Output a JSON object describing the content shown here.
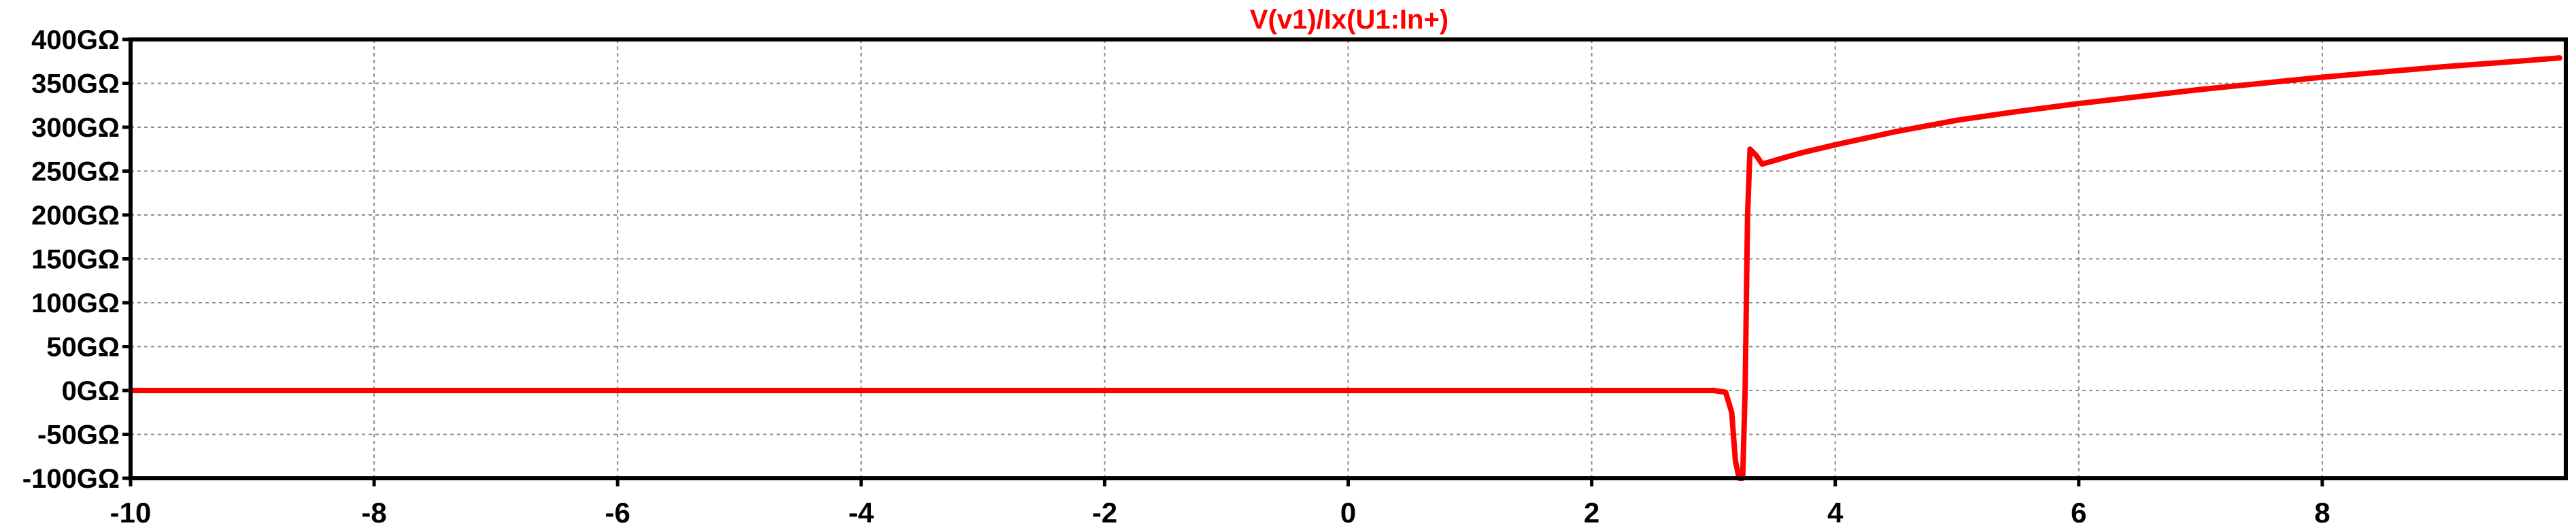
{
  "chart_data": {
    "type": "line",
    "title": "V(v1)/Ix(U1:In+)",
    "title_color": "#ff0000",
    "xlim": [
      -10,
      10
    ],
    "ylim": [
      -100,
      400
    ],
    "y_unit": "GΩ",
    "grid": true,
    "x_ticks": [
      -10,
      -8,
      -6,
      -4,
      -2,
      0,
      2,
      4,
      6,
      8
    ],
    "x_tick_labels": [
      "-10",
      "-8",
      "-6",
      "-4",
      "-2",
      "0",
      "2",
      "4",
      "6",
      "8"
    ],
    "y_ticks": [
      400,
      350,
      300,
      250,
      200,
      150,
      100,
      50,
      0,
      -50,
      -100
    ],
    "y_tick_labels": [
      "400GΩ",
      "350GΩ",
      "300GΩ",
      "250GΩ",
      "200GΩ",
      "150GΩ",
      "100GΩ",
      "50GΩ",
      "0GΩ",
      "-50GΩ",
      "-100GΩ"
    ],
    "series": [
      {
        "color": "#ff0000",
        "x": [
          -10,
          3.0,
          3.1,
          3.15,
          3.18,
          3.21,
          3.24,
          3.26,
          3.28,
          3.3,
          3.35,
          3.4,
          3.5,
          3.7,
          4.0,
          4.5,
          5.0,
          5.5,
          6.0,
          6.5,
          7.0,
          7.5,
          8.0,
          8.5,
          9.0,
          9.5,
          9.95
        ],
        "y": [
          0,
          0,
          -2,
          -25,
          -80,
          -100,
          -100,
          0,
          200,
          275,
          268,
          258,
          262,
          270,
          280,
          295,
          308,
          318,
          327,
          335,
          343,
          350,
          357,
          363,
          369,
          374,
          379
        ]
      }
    ]
  }
}
